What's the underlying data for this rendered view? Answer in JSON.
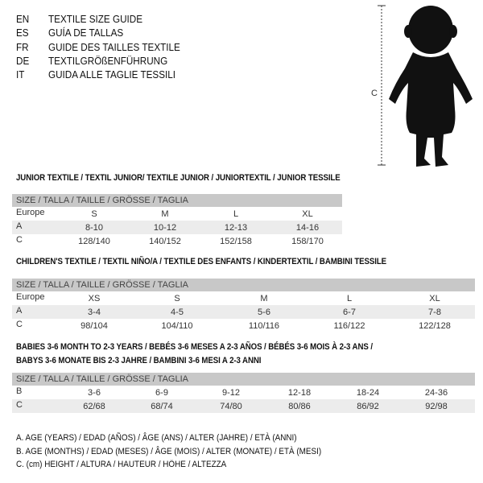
{
  "languages": [
    {
      "code": "EN",
      "text": "TEXTILE SIZE GUIDE"
    },
    {
      "code": "ES",
      "text": "GUÍA DE TALLAS"
    },
    {
      "code": "FR",
      "text": "GUIDE DES TAILLES TEXTILE"
    },
    {
      "code": "DE",
      "text": "TEXTILGRÖßENFÜHRUNG"
    },
    {
      "code": "IT",
      "text": "GUIDA ALLE TAGLIE TESSILI"
    }
  ],
  "figure": {
    "measure_label": "C"
  },
  "tables": [
    {
      "title": "JUNIOR TEXTILE / TEXTIL JUNIOR/ TEXTILE JUNIOR / JUNIORTEXTIL / JUNIOR TESSILE",
      "header": "SIZE / TALLA / TAILLE / GRÖSSE / TAGLIA",
      "rows": [
        {
          "label": "Europe",
          "values": [
            "S",
            "M",
            "L",
            "XL"
          ]
        },
        {
          "label": "A",
          "values": [
            "8-10",
            "10-12",
            "12-13",
            "14-16"
          ]
        },
        {
          "label": "C",
          "values": [
            "128/140",
            "140/152",
            "152/158",
            "158/170"
          ]
        }
      ]
    },
    {
      "title": "CHILDREN'S TEXTILE / TEXTIL NIÑO/A / TEXTILE DES ENFANTS / KINDERTEXTIL / BAMBINI TESSILE",
      "header": "SIZE / TALLA / TAILLE / GRÖSSE / TAGLIA",
      "rows": [
        {
          "label": "Europe",
          "values": [
            "XS",
            "S",
            "M",
            "L",
            "XL"
          ]
        },
        {
          "label": "A",
          "values": [
            "3-4",
            "4-5",
            "5-6",
            "6-7",
            "7-8"
          ]
        },
        {
          "label": "C",
          "values": [
            "98/104",
            "104/110",
            "110/116",
            "116/122",
            "122/128"
          ]
        }
      ]
    },
    {
      "title": "BABIES 3-6 MONTH TO 2-3 YEARS / BEBÉS 3-6 MESES A 2-3 AÑOS / BÉBÉS 3-6 MOIS À 2-3 ANS /",
      "title2": "BABYS 3-6 MONATE BIS 2-3 JAHRE / BAMBINI 3-6 MESI A 2-3 ANNI",
      "header": "SIZE / TALLA / TAILLE / GRÖSSE / TAGLIA",
      "rows": [
        {
          "label": "B",
          "values": [
            "3-6",
            "6-9",
            "9-12",
            "12-18",
            "18-24",
            "24-36"
          ]
        },
        {
          "label": "C",
          "values": [
            "62/68",
            "68/74",
            "74/80",
            "80/86",
            "86/92",
            "92/98"
          ]
        }
      ]
    }
  ],
  "legend": [
    "A. AGE (YEARS) / EDAD (AÑOS) / ÂGE (ANS) / ALTER (JAHRE) / ETÀ (ANNI)",
    "B. AGE (MONTHS) / EDAD (MESES) / ÂGE (MOIS) / ALTER (MONATE) / ETÀ (MESI)",
    "C. (cm) HEIGHT / ALTURA / HAUTEUR / HÖHE / ALTEZZA"
  ]
}
